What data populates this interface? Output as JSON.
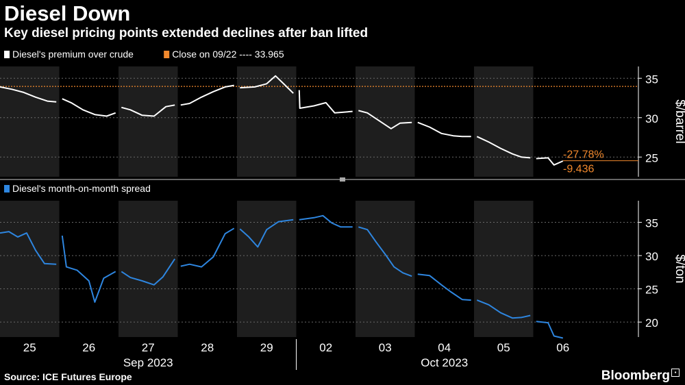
{
  "title": "Diesel Down",
  "subtitle": "Key diesel pricing points extended declines after ban lifted",
  "source": "Source: ICE Futures Europe",
  "brand": "Bloomberg",
  "colors": {
    "background": "#000000",
    "band": "#1e1e1e",
    "premium": "#ffffff",
    "reference": "#f2892d",
    "spread": "#2e86e0",
    "grid": "#6a6a6a",
    "axis_text": "#ffffff"
  },
  "chart_data": [
    {
      "type": "line",
      "legend": [
        {
          "label": "Diesel's premium over crude",
          "color": "#ffffff"
        },
        {
          "label": "Close on 09/22 ---- 33.965",
          "color": "#f2892d"
        }
      ],
      "ylabel": "$/barrel",
      "ylim": [
        22.5,
        36.5
      ],
      "yticks": [
        25,
        30,
        35
      ],
      "reference_line": {
        "value": 33.965
      },
      "annotations": {
        "pct_change": "-27.78%",
        "change": "-9.436",
        "last_value": 24.53
      },
      "x_sessions": [
        "25",
        "26",
        "27",
        "28",
        "29",
        "02",
        "03",
        "04",
        "05",
        "06"
      ],
      "series": [
        {
          "values": [
            [
              [
                0.0,
                33.9
              ],
              [
                0.2,
                33.6
              ],
              [
                0.4,
                33.2
              ],
              [
                0.6,
                32.6
              ],
              [
                0.8,
                32.1
              ],
              [
                0.95,
                32.0
              ]
            ],
            [
              [
                1.05,
                32.4
              ],
              [
                1.2,
                31.9
              ],
              [
                1.4,
                31.0
              ],
              [
                1.6,
                30.4
              ],
              [
                1.8,
                30.2
              ],
              [
                1.95,
                30.6
              ]
            ],
            [
              [
                2.05,
                31.3
              ],
              [
                2.2,
                31.0
              ],
              [
                2.4,
                30.3
              ],
              [
                2.6,
                30.2
              ],
              [
                2.8,
                31.4
              ],
              [
                2.95,
                31.6
              ]
            ],
            [
              [
                3.05,
                31.6
              ],
              [
                3.2,
                31.8
              ],
              [
                3.4,
                32.6
              ],
              [
                3.6,
                33.3
              ],
              [
                3.8,
                33.9
              ],
              [
                3.95,
                34.1
              ]
            ],
            [
              [
                4.05,
                33.8
              ],
              [
                4.3,
                33.9
              ],
              [
                4.5,
                34.3
              ],
              [
                4.65,
                35.3
              ],
              [
                4.8,
                34.2
              ],
              [
                4.95,
                33.1
              ]
            ],
            [
              [
                5.05,
                33.5
              ],
              [
                5.06,
                31.2
              ],
              [
                5.3,
                31.5
              ],
              [
                5.5,
                31.9
              ],
              [
                5.65,
                30.6
              ],
              [
                5.8,
                30.7
              ],
              [
                5.95,
                30.8
              ]
            ],
            [
              [
                6.05,
                30.9
              ],
              [
                6.2,
                30.6
              ],
              [
                6.4,
                29.6
              ],
              [
                6.6,
                28.6
              ],
              [
                6.75,
                29.3
              ],
              [
                6.95,
                29.4
              ]
            ],
            [
              [
                7.05,
                29.4
              ],
              [
                7.25,
                28.8
              ],
              [
                7.45,
                28.0
              ],
              [
                7.65,
                27.7
              ],
              [
                7.8,
                27.6
              ],
              [
                7.95,
                27.6
              ]
            ],
            [
              [
                8.05,
                27.6
              ],
              [
                8.25,
                26.9
              ],
              [
                8.45,
                26.1
              ],
              [
                8.65,
                25.4
              ],
              [
                8.8,
                25.0
              ],
              [
                8.95,
                24.9
              ]
            ],
            [
              [
                9.05,
                24.8
              ],
              [
                9.25,
                24.9
              ],
              [
                9.35,
                24.0
              ],
              [
                9.5,
                24.5
              ]
            ]
          ]
        }
      ]
    },
    {
      "type": "line",
      "legend": [
        {
          "label": "Diesel's month-on-month spread",
          "color": "#2e86e0"
        }
      ],
      "ylabel": "$/ton",
      "ylim": [
        17.75,
        38.25
      ],
      "yticks": [
        20,
        25,
        30,
        35
      ],
      "x_sessions": [
        "25",
        "26",
        "27",
        "28",
        "29",
        "02",
        "03",
        "04",
        "05",
        "06"
      ],
      "xaxis_months": [
        "Sep 2023",
        "Oct 2023"
      ],
      "series": [
        {
          "values": [
            [
              [
                0.0,
                33.4
              ],
              [
                0.15,
                33.6
              ],
              [
                0.3,
                32.8
              ],
              [
                0.45,
                33.4
              ],
              [
                0.6,
                30.8
              ],
              [
                0.75,
                28.8
              ],
              [
                0.95,
                28.7
              ]
            ],
            [
              [
                1.05,
                33.0
              ],
              [
                1.12,
                28.3
              ],
              [
                1.3,
                27.8
              ],
              [
                1.5,
                26.2
              ],
              [
                1.6,
                23.0
              ],
              [
                1.75,
                26.6
              ],
              [
                1.95,
                27.6
              ]
            ],
            [
              [
                2.05,
                27.6
              ],
              [
                2.2,
                26.7
              ],
              [
                2.4,
                26.2
              ],
              [
                2.6,
                25.6
              ],
              [
                2.75,
                26.8
              ],
              [
                2.95,
                29.5
              ]
            ],
            [
              [
                3.05,
                28.4
              ],
              [
                3.2,
                28.7
              ],
              [
                3.4,
                28.3
              ],
              [
                3.6,
                29.8
              ],
              [
                3.8,
                33.3
              ],
              [
                3.95,
                34.1
              ]
            ],
            [
              [
                4.05,
                34.0
              ],
              [
                4.2,
                32.8
              ],
              [
                4.35,
                31.3
              ],
              [
                4.5,
                33.9
              ],
              [
                4.7,
                35.1
              ],
              [
                4.95,
                35.4
              ]
            ],
            [
              [
                5.05,
                35.4
              ],
              [
                5.3,
                35.7
              ],
              [
                5.45,
                36.0
              ],
              [
                5.6,
                34.9
              ],
              [
                5.75,
                34.3
              ],
              [
                5.95,
                34.3
              ]
            ],
            [
              [
                6.05,
                34.3
              ],
              [
                6.2,
                33.9
              ],
              [
                6.35,
                32.0
              ],
              [
                6.5,
                30.2
              ],
              [
                6.65,
                28.3
              ],
              [
                6.8,
                27.4
              ],
              [
                6.95,
                26.9
              ]
            ],
            [
              [
                7.05,
                27.2
              ],
              [
                7.25,
                27.0
              ],
              [
                7.45,
                25.6
              ],
              [
                7.6,
                24.6
              ],
              [
                7.8,
                23.4
              ],
              [
                7.95,
                23.3
              ]
            ],
            [
              [
                8.05,
                23.3
              ],
              [
                8.25,
                22.6
              ],
              [
                8.45,
                21.4
              ],
              [
                8.65,
                20.6
              ],
              [
                8.8,
                20.7
              ],
              [
                8.95,
                21.0
              ]
            ],
            [
              [
                9.05,
                20.1
              ],
              [
                9.25,
                19.9
              ],
              [
                9.35,
                17.9
              ],
              [
                9.5,
                17.6
              ]
            ]
          ]
        }
      ]
    }
  ]
}
